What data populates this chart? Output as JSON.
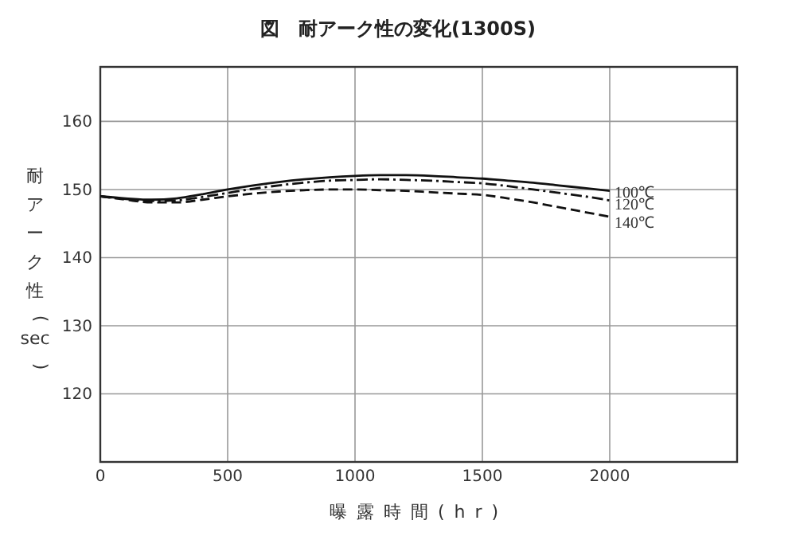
{
  "chart_data": {
    "type": "line",
    "title": "図　耐アーク性の変化(1300S)",
    "xlabel": "曝露時間(hr)",
    "ylabel": "耐アーク性(sec)",
    "xlim": [
      0,
      2500
    ],
    "xticks": [
      0,
      500,
      1000,
      1500,
      2000
    ],
    "ylim": [
      110,
      168
    ],
    "yticks": [
      120,
      130,
      140,
      150,
      160
    ],
    "grid": true,
    "legend": false,
    "marker": "none",
    "series": [
      {
        "name": "100℃",
        "color": "#111111",
        "line_style": "solid",
        "x": [
          0,
          100,
          200,
          300,
          400,
          500,
          600,
          700,
          800,
          900,
          1000,
          1100,
          1200,
          1300,
          1400,
          1500,
          1600,
          1700,
          1800,
          1900,
          2000
        ],
        "values": [
          149,
          148.7,
          148.5,
          148.7,
          149.3,
          150,
          150.6,
          151.1,
          151.5,
          151.8,
          152,
          152.1,
          152.1,
          152,
          151.8,
          151.6,
          151.3,
          151,
          150.6,
          150.2,
          149.8
        ]
      },
      {
        "name": "120℃",
        "color": "#111111",
        "line_style": "dashdot",
        "x": [
          0,
          100,
          200,
          300,
          400,
          500,
          600,
          700,
          800,
          900,
          1000,
          1100,
          1200,
          1300,
          1400,
          1500,
          1600,
          1700,
          1800,
          1900,
          2000
        ],
        "values": [
          149,
          148.6,
          148.3,
          148.4,
          148.9,
          149.5,
          150.1,
          150.6,
          151,
          151.3,
          151.4,
          151.5,
          151.4,
          151.3,
          151.1,
          150.9,
          150.5,
          150,
          149.5,
          149,
          148.4
        ]
      },
      {
        "name": "140℃",
        "color": "#111111",
        "line_style": "dashed",
        "x": [
          0,
          100,
          200,
          300,
          400,
          500,
          600,
          700,
          800,
          900,
          1000,
          1100,
          1200,
          1300,
          1400,
          1500,
          1600,
          1700,
          1800,
          1900,
          2000
        ],
        "values": [
          149,
          148.5,
          148.1,
          148.1,
          148.5,
          149,
          149.4,
          149.7,
          149.9,
          150,
          150,
          149.9,
          149.8,
          149.6,
          149.4,
          149.2,
          148.7,
          148.1,
          147.4,
          146.7,
          146
        ]
      }
    ]
  }
}
